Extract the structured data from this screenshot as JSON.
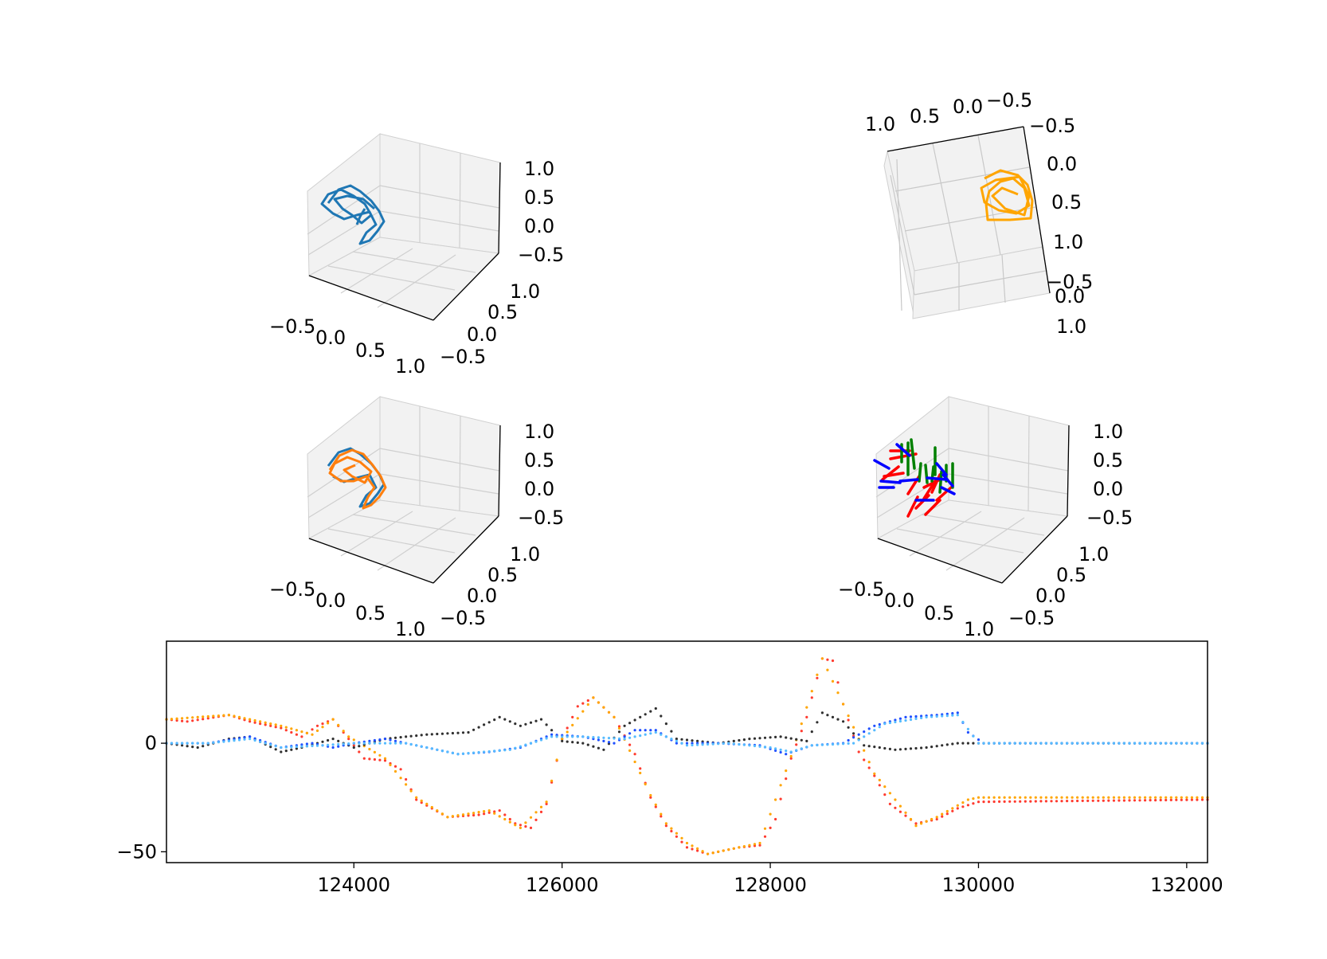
{
  "chart_data": [
    {
      "type": "scatter",
      "subtype": "3d-line",
      "panel": "top-left",
      "xticks": [
        "−0.5",
        "0.0",
        "0.5",
        "1.0"
      ],
      "yticks": [
        "−0.5",
        "0.0",
        "0.5",
        "1.0"
      ],
      "zticks": [
        "−0.5",
        "0.0",
        "0.5",
        "1.0"
      ],
      "xlim": [
        -0.5,
        1.0
      ],
      "ylim": [
        -0.5,
        1.0
      ],
      "zlim": [
        -0.5,
        1.0
      ],
      "grid": true,
      "colors": {
        "trajectory": "#1f77b4"
      }
    },
    {
      "type": "scatter",
      "subtype": "3d-line",
      "panel": "top-right",
      "view": "rotated top-down",
      "xticks": [
        "1.0",
        "0.5",
        "0.0",
        "−0.5"
      ],
      "yticks": [
        "−0.5",
        "0.0",
        "0.5",
        "1.0"
      ],
      "zticks": [
        "−0.5",
        "0.0",
        "1.0"
      ],
      "grid": true,
      "colors": {
        "trajectory": "#ffa500"
      }
    },
    {
      "type": "scatter",
      "subtype": "3d-line",
      "panel": "middle-left",
      "xticks": [
        "−0.5",
        "0.0",
        "0.5",
        "1.0"
      ],
      "yticks": [
        "−0.5",
        "0.0",
        "0.5",
        "1.0"
      ],
      "zticks": [
        "−0.5",
        "0.0",
        "0.5",
        "1.0"
      ],
      "grid": true,
      "colors": {
        "trajectory_a": "#1f77b4",
        "trajectory_b": "#ff7f0e"
      }
    },
    {
      "type": "scatter",
      "subtype": "3d-quiver",
      "panel": "middle-right",
      "xticks": [
        "−0.5",
        "0.0",
        "0.5",
        "1.0"
      ],
      "yticks": [
        "−0.5",
        "0.0",
        "0.5",
        "1.0"
      ],
      "zticks": [
        "−0.5",
        "0.0",
        "0.5",
        "1.0"
      ],
      "grid": true,
      "colors": {
        "x_axis": "#ff0000",
        "y_axis": "#008000",
        "z_axis": "#0000ff"
      }
    },
    {
      "type": "scatter",
      "panel": "bottom",
      "xlim": [
        122200,
        132200
      ],
      "ylim": [
        -55,
        47
      ],
      "xticks": [
        124000,
        126000,
        128000,
        130000,
        132000
      ],
      "yticks": [
        0,
        -50
      ],
      "grid": false,
      "series": [
        {
          "color": "#ff3b2f",
          "keys": [
            [
              122200,
              11
            ],
            [
              122400,
              10
            ],
            [
              122800,
              13
            ],
            [
              123000,
              10
            ],
            [
              123300,
              7
            ],
            [
              123500,
              3
            ],
            [
              123650,
              8
            ],
            [
              123800,
              11
            ],
            [
              123950,
              2
            ],
            [
              124100,
              -7
            ],
            [
              124300,
              -8
            ],
            [
              124450,
              -12
            ],
            [
              124600,
              -26
            ],
            [
              124900,
              -34
            ],
            [
              125200,
              -33
            ],
            [
              125400,
              -31
            ],
            [
              125550,
              -37
            ],
            [
              125700,
              -39
            ],
            [
              125850,
              -28
            ],
            [
              126000,
              2
            ],
            [
              126150,
              17
            ],
            [
              126300,
              21
            ],
            [
              126500,
              12
            ],
            [
              126700,
              -5
            ],
            [
              126850,
              -25
            ],
            [
              127000,
              -38
            ],
            [
              127200,
              -48
            ],
            [
              127400,
              -51
            ],
            [
              127700,
              -48
            ],
            [
              127900,
              -47
            ],
            [
              128050,
              -35
            ],
            [
              128200,
              -7
            ],
            [
              128350,
              12
            ],
            [
              128500,
              39
            ],
            [
              128600,
              38
            ],
            [
              128700,
              18
            ],
            [
              128850,
              -4
            ],
            [
              129000,
              -15
            ],
            [
              129150,
              -28
            ],
            [
              129400,
              -37
            ],
            [
              129600,
              -35
            ],
            [
              129800,
              -30
            ],
            [
              130000,
              -27
            ],
            [
              132200,
              -26
            ]
          ]
        },
        {
          "color": "#ffa500",
          "keys": [
            [
              122200,
              11
            ],
            [
              122800,
              13
            ],
            [
              123300,
              8
            ],
            [
              123600,
              4
            ],
            [
              123800,
              11
            ],
            [
              123950,
              3
            ],
            [
              124300,
              -7
            ],
            [
              124600,
              -25
            ],
            [
              124900,
              -34
            ],
            [
              125300,
              -31
            ],
            [
              125600,
              -39
            ],
            [
              125850,
              -27
            ],
            [
              126000,
              2
            ],
            [
              126300,
              21
            ],
            [
              126500,
              12
            ],
            [
              126850,
              -24
            ],
            [
              127000,
              -37
            ],
            [
              127200,
              -46
            ],
            [
              127400,
              -51
            ],
            [
              127700,
              -48
            ],
            [
              127900,
              -46
            ],
            [
              128200,
              -6
            ],
            [
              128500,
              39
            ],
            [
              128700,
              18
            ],
            [
              129000,
              -14
            ],
            [
              129400,
              -38
            ],
            [
              129600,
              -34
            ],
            [
              129900,
              -26
            ],
            [
              130000,
              -25
            ],
            [
              132200,
              -25
            ]
          ]
        },
        {
          "color": "#303030",
          "keys": [
            [
              122200,
              0
            ],
            [
              122500,
              -2
            ],
            [
              122800,
              2
            ],
            [
              123000,
              3
            ],
            [
              123300,
              -4
            ],
            [
              123500,
              -2
            ],
            [
              123800,
              2
            ],
            [
              124000,
              -2
            ],
            [
              124300,
              2
            ],
            [
              124700,
              4
            ],
            [
              125100,
              5
            ],
            [
              125400,
              12
            ],
            [
              125600,
              8
            ],
            [
              125800,
              11
            ],
            [
              126000,
              1
            ],
            [
              126200,
              0
            ],
            [
              126400,
              -3
            ],
            [
              126600,
              8
            ],
            [
              126900,
              16
            ],
            [
              127100,
              2
            ],
            [
              127500,
              0
            ],
            [
              127800,
              2
            ],
            [
              128100,
              3
            ],
            [
              128350,
              1
            ],
            [
              128500,
              14
            ],
            [
              128700,
              10
            ],
            [
              128900,
              -1
            ],
            [
              129200,
              -3
            ],
            [
              129500,
              -2
            ],
            [
              129800,
              0
            ],
            [
              130100,
              0
            ],
            [
              132200,
              0
            ]
          ]
        },
        {
          "color": "#1f4fff",
          "keys": [
            [
              122200,
              0
            ],
            [
              122600,
              0
            ],
            [
              123000,
              3
            ],
            [
              123300,
              -2
            ],
            [
              123600,
              0
            ],
            [
              123800,
              -2
            ],
            [
              124000,
              0
            ],
            [
              124300,
              2
            ],
            [
              124600,
              -1
            ],
            [
              125000,
              -5
            ],
            [
              125300,
              -4
            ],
            [
              125600,
              -2
            ],
            [
              125900,
              4
            ],
            [
              126200,
              3
            ],
            [
              126500,
              0
            ],
            [
              126700,
              6
            ],
            [
              126900,
              6
            ],
            [
              127100,
              0
            ],
            [
              127500,
              0
            ],
            [
              127900,
              -1
            ],
            [
              128150,
              -5
            ],
            [
              128400,
              -1
            ],
            [
              128700,
              0
            ],
            [
              129000,
              8
            ],
            [
              129300,
              12
            ],
            [
              129600,
              13
            ],
            [
              129800,
              14
            ],
            [
              129900,
              5
            ],
            [
              130050,
              0
            ],
            [
              132200,
              0
            ]
          ]
        },
        {
          "color": "#55bbff",
          "keys": [
            [
              122200,
              0
            ],
            [
              122600,
              0
            ],
            [
              123000,
              2
            ],
            [
              123300,
              -2
            ],
            [
              123700,
              -1
            ],
            [
              124000,
              0
            ],
            [
              124500,
              0
            ],
            [
              125000,
              -5
            ],
            [
              125500,
              -3
            ],
            [
              125900,
              3
            ],
            [
              126200,
              3
            ],
            [
              126600,
              2
            ],
            [
              126900,
              5
            ],
            [
              127200,
              -1
            ],
            [
              127600,
              0
            ],
            [
              128000,
              -2
            ],
            [
              128200,
              -4
            ],
            [
              128400,
              -1
            ],
            [
              128800,
              0
            ],
            [
              129100,
              9
            ],
            [
              129500,
              12
            ],
            [
              129800,
              13
            ],
            [
              130000,
              0
            ],
            [
              132200,
              0
            ]
          ]
        }
      ]
    }
  ]
}
